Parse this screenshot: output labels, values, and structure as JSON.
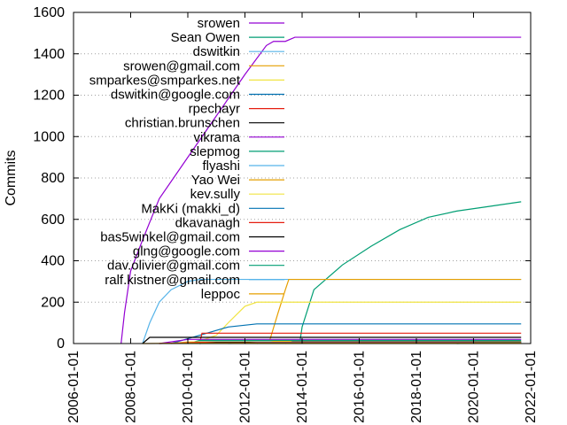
{
  "chart_data": {
    "type": "line",
    "title": "",
    "xlabel": "",
    "ylabel": "Commits",
    "xlim": [
      "2006-01-01",
      "2022-01-01"
    ],
    "ylim": [
      0,
      1600
    ],
    "x_ticks": [
      "2006-01-01",
      "2008-01-01",
      "2010-01-01",
      "2012-01-01",
      "2014-01-01",
      "2016-01-01",
      "2018-01-01",
      "2020-01-01",
      "2022-01-01"
    ],
    "y_ticks": [
      0,
      200,
      400,
      600,
      800,
      1000,
      1200,
      1400,
      1600
    ],
    "grid": "horizontal-dotted",
    "legend_position": "top-left",
    "series": [
      {
        "name": "srowen",
        "color": "#9400d3",
        "points": [
          [
            "2007-09-01",
            0
          ],
          [
            "2007-10-15",
            150
          ],
          [
            "2008-01-01",
            350
          ],
          [
            "2008-06-01",
            500
          ],
          [
            "2009-01-01",
            700
          ],
          [
            "2010-01-01",
            900
          ],
          [
            "2011-01-01",
            1100
          ],
          [
            "2012-01-01",
            1300
          ],
          [
            "2012-10-01",
            1440
          ],
          [
            "2013-01-01",
            1460
          ],
          [
            "2013-06-01",
            1460
          ],
          [
            "2013-10-01",
            1480
          ],
          [
            "2021-09-01",
            1480
          ]
        ]
      },
      {
        "name": "Sean Owen",
        "color": "#009e73",
        "points": [
          [
            "2013-12-01",
            0
          ],
          [
            "2014-01-01",
            80
          ],
          [
            "2014-06-01",
            260
          ],
          [
            "2015-06-01",
            380
          ],
          [
            "2016-06-01",
            470
          ],
          [
            "2017-06-01",
            550
          ],
          [
            "2018-06-01",
            610
          ],
          [
            "2019-06-01",
            640
          ],
          [
            "2020-06-01",
            660
          ],
          [
            "2021-09-01",
            685
          ]
        ]
      },
      {
        "name": "dswitkin",
        "color": "#56b4e9",
        "points": [
          [
            "2008-06-01",
            0
          ],
          [
            "2008-09-01",
            100
          ],
          [
            "2009-01-01",
            200
          ],
          [
            "2009-06-01",
            260
          ],
          [
            "2010-01-01",
            300
          ],
          [
            "2010-06-01",
            310
          ],
          [
            "2013-10-01",
            310
          ],
          [
            "2021-09-01",
            310
          ]
        ]
      },
      {
        "name": "srowen@gmail.com",
        "color": "#e69f00",
        "points": [
          [
            "2012-11-01",
            0
          ],
          [
            "2013-03-01",
            150
          ],
          [
            "2013-06-01",
            260
          ],
          [
            "2013-07-15",
            310
          ],
          [
            "2021-09-01",
            310
          ]
        ]
      },
      {
        "name": "smparkes@smparkes.net",
        "color": "#f0e442",
        "points": [
          [
            "2010-03-01",
            0
          ],
          [
            "2011-01-01",
            40
          ],
          [
            "2011-06-01",
            100
          ],
          [
            "2012-01-01",
            180
          ],
          [
            "2012-06-01",
            200
          ],
          [
            "2021-09-01",
            200
          ]
        ]
      },
      {
        "name": "dswitkin@google.com",
        "color": "#0072b2",
        "points": [
          [
            "2009-06-01",
            0
          ],
          [
            "2010-06-01",
            40
          ],
          [
            "2011-06-01",
            80
          ],
          [
            "2012-06-01",
            95
          ],
          [
            "2021-09-01",
            95
          ]
        ]
      },
      {
        "name": "rpechayr",
        "color": "#e51e10",
        "points": [
          [
            "2010-06-01",
            0
          ],
          [
            "2010-07-01",
            50
          ],
          [
            "2021-09-01",
            50
          ]
        ]
      },
      {
        "name": "christian.brunschen",
        "color": "#000000",
        "points": [
          [
            "2008-06-01",
            0
          ],
          [
            "2008-09-01",
            30
          ],
          [
            "2021-09-01",
            30
          ]
        ]
      },
      {
        "name": "vikrama",
        "color": "#9400d3",
        "points": [
          [
            "2009-01-01",
            0
          ],
          [
            "2010-01-01",
            20
          ],
          [
            "2021-09-01",
            20
          ]
        ]
      },
      {
        "name": "slepmog",
        "color": "#009e73",
        "points": [
          [
            "2010-01-01",
            0
          ],
          [
            "2010-06-01",
            15
          ],
          [
            "2021-09-01",
            15
          ]
        ]
      },
      {
        "name": "flyashi",
        "color": "#56b4e9",
        "points": [
          [
            "2010-01-01",
            0
          ],
          [
            "2010-06-01",
            10
          ],
          [
            "2021-09-01",
            10
          ]
        ]
      },
      {
        "name": "Yao Wei",
        "color": "#e69f00",
        "points": [
          [
            "2012-06-01",
            0
          ],
          [
            "2013-01-01",
            10
          ],
          [
            "2021-09-01",
            10
          ]
        ]
      },
      {
        "name": "kev.sully",
        "color": "#f0e442",
        "points": [
          [
            "2009-06-01",
            0
          ],
          [
            "2010-01-01",
            8
          ],
          [
            "2021-09-01",
            8
          ]
        ]
      },
      {
        "name": "MakKi (makki_d)",
        "color": "#0072b2",
        "points": [
          [
            "2013-06-01",
            0
          ],
          [
            "2013-09-01",
            8
          ],
          [
            "2021-09-01",
            8
          ]
        ]
      },
      {
        "name": "dkavanagh",
        "color": "#e51e10",
        "points": [
          [
            "2009-01-01",
            0
          ],
          [
            "2010-06-01",
            6
          ],
          [
            "2021-09-01",
            6
          ]
        ]
      },
      {
        "name": "bas5winkel@gmail.com",
        "color": "#000000",
        "points": [
          [
            "2010-06-01",
            0
          ],
          [
            "2011-01-01",
            5
          ],
          [
            "2021-09-01",
            5
          ]
        ]
      },
      {
        "name": "glng@google.com",
        "color": "#9400d3",
        "points": [
          [
            "2012-01-01",
            0
          ],
          [
            "2012-06-01",
            4
          ],
          [
            "2021-09-01",
            4
          ]
        ]
      },
      {
        "name": "dav.olivier@gmail.com",
        "color": "#009e73",
        "points": [
          [
            "2019-06-01",
            0
          ],
          [
            "2020-06-01",
            4
          ],
          [
            "2021-09-01",
            4
          ]
        ]
      },
      {
        "name": "ralf.kistner@gmail.com",
        "color": "#56b4e9",
        "points": [
          [
            "2011-06-01",
            0
          ],
          [
            "2012-06-01",
            3
          ],
          [
            "2021-09-01",
            3
          ]
        ]
      },
      {
        "name": "leppoc",
        "color": "#e69f00",
        "points": [
          [
            "2008-06-01",
            0
          ],
          [
            "2010-06-01",
            2
          ],
          [
            "2021-09-01",
            2
          ]
        ]
      }
    ]
  }
}
